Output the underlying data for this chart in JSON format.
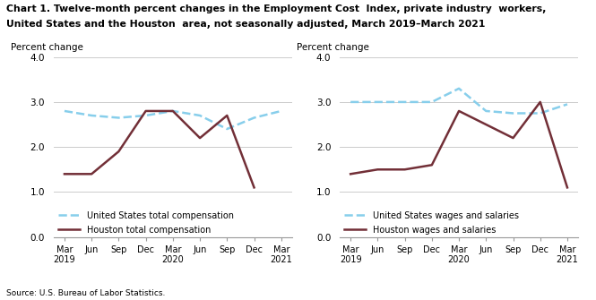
{
  "title_line1": "Chart 1. Twelve-month percent changes in the Employment Cost  Index, private industry  workers,",
  "title_line2": "United States and the Houston  area, not seasonally adjusted, March 2019–March 2021",
  "source": "Source: U.S. Bureau of Labor Statistics.",
  "ylabel": "Percent change",
  "x_labels": [
    "Mar\n2019",
    "Jun",
    "Sep",
    "Dec",
    "Mar\n2020",
    "Jun",
    "Sep",
    "Dec",
    "Mar\n2021"
  ],
  "chart1": {
    "us_total": [
      2.8,
      2.7,
      2.65,
      2.7,
      2.8,
      2.7,
      2.4,
      2.65,
      2.8
    ],
    "houston_total": [
      1.4,
      1.4,
      1.9,
      2.8,
      2.8,
      2.2,
      2.7,
      1.1,
      null
    ],
    "legend_us": "United States total compensation",
    "legend_houston": "Houston total compensation"
  },
  "chart2": {
    "us_wages": [
      3.0,
      3.0,
      3.0,
      3.0,
      3.3,
      2.8,
      2.75,
      2.75,
      2.95
    ],
    "houston_wages": [
      1.4,
      1.5,
      1.5,
      1.6,
      2.8,
      2.5,
      2.2,
      3.0,
      1.1
    ],
    "legend_us": "United States wages and salaries",
    "legend_houston": "Houston wages and salaries"
  },
  "us_color": "#87CEEB",
  "houston_color": "#722F37",
  "ylim": [
    0.0,
    4.0
  ],
  "yticks": [
    0.0,
    1.0,
    2.0,
    3.0,
    4.0
  ]
}
